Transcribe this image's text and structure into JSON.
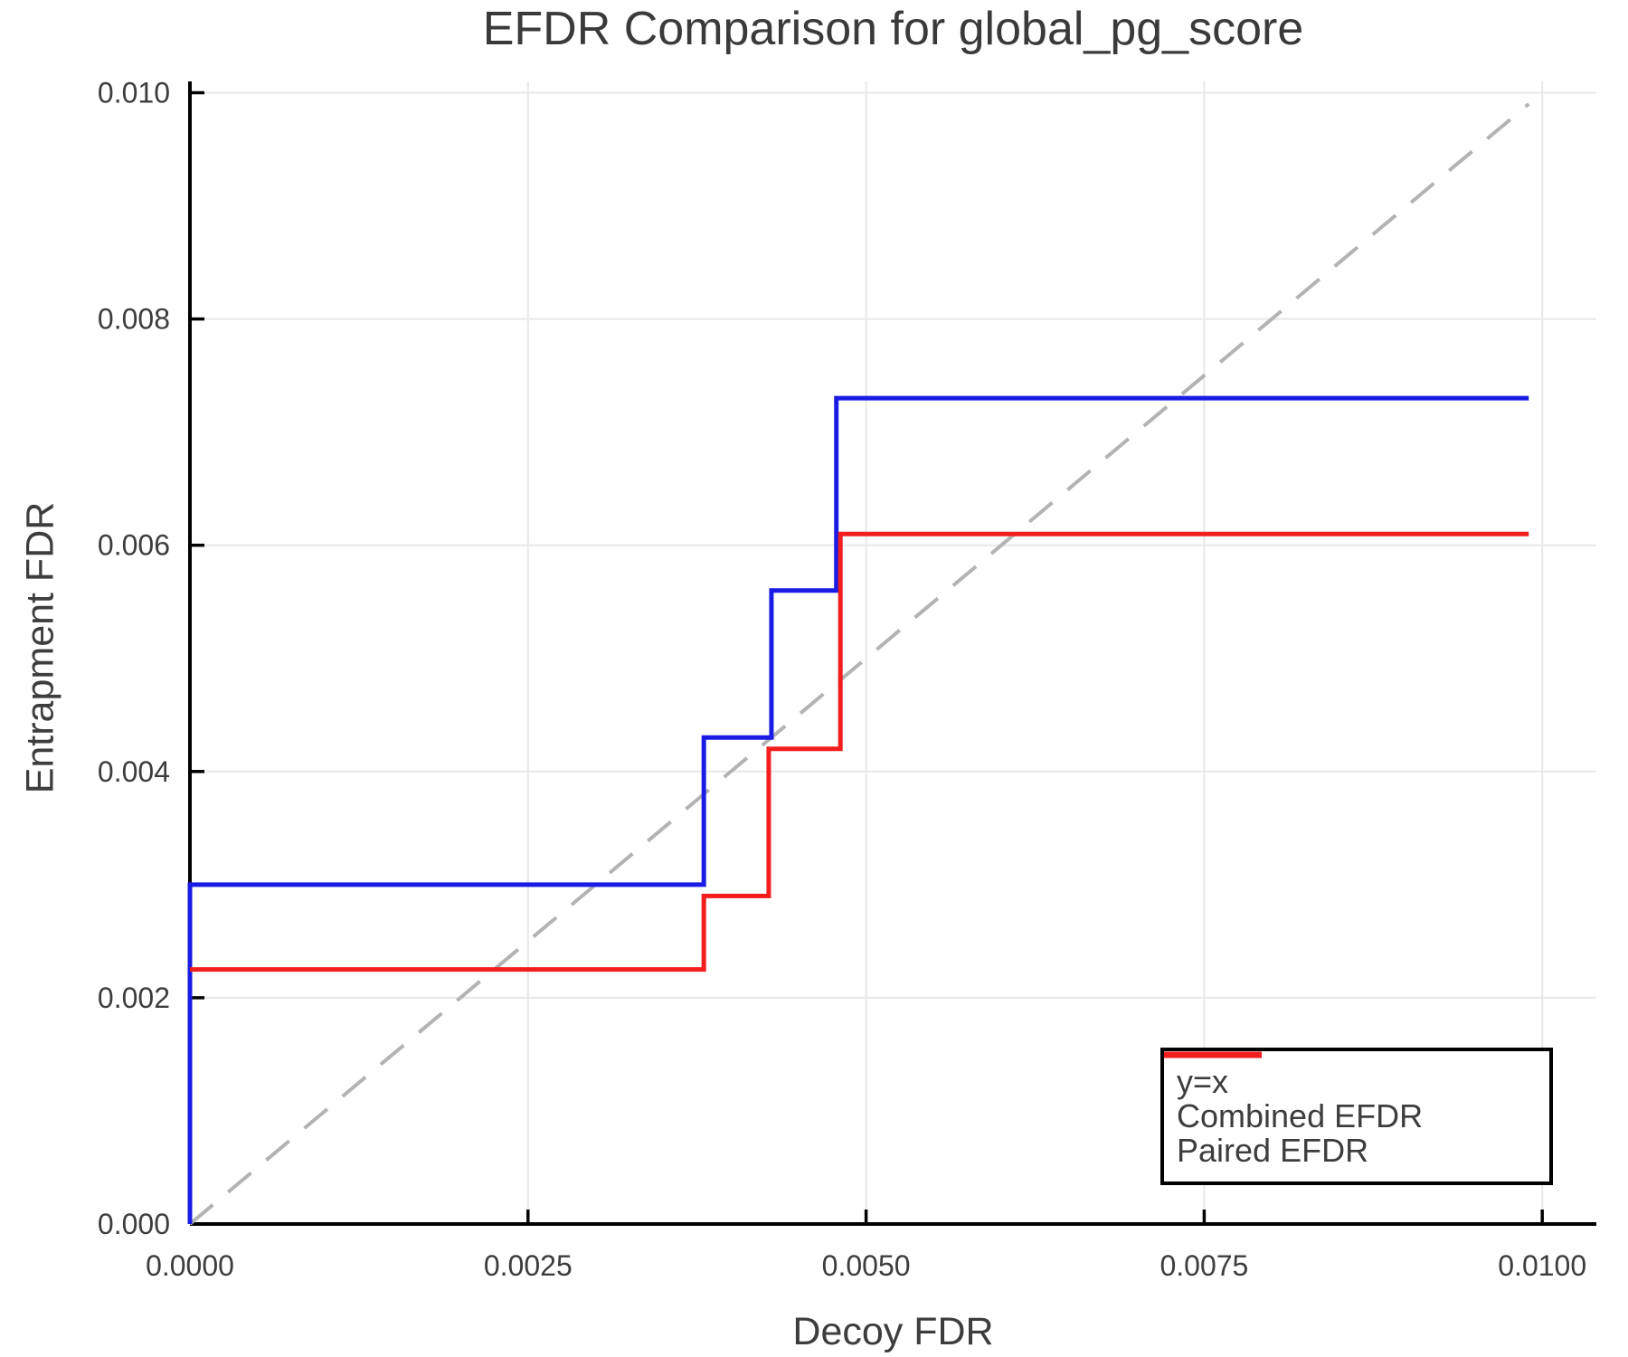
{
  "page": {
    "background": "#ffffff"
  },
  "chart_data": {
    "type": "line",
    "title": "EFDR Comparison for global_pg_score",
    "xlabel": "Decoy FDR",
    "ylabel": "Entrapment FDR",
    "xlim": [
      0,
      0.0104
    ],
    "ylim": [
      0,
      0.0101
    ],
    "x_ticks": {
      "values": [
        0,
        0.0025,
        0.005,
        0.0075,
        0.01
      ],
      "labels": [
        "0.0000",
        "0.0025",
        "0.0050",
        "0.0075",
        "0.0100"
      ]
    },
    "y_ticks": {
      "values": [
        0,
        0.002,
        0.004,
        0.006,
        0.008,
        0.01
      ],
      "labels": [
        "0.000",
        "0.002",
        "0.004",
        "0.006",
        "0.008",
        "0.010"
      ]
    },
    "grid": true,
    "legend": {
      "position": "bottom-right"
    },
    "colors": {
      "grid": "#e8e8e8",
      "spine": "#000000",
      "tick": "#000000",
      "text": "#3d3d3d",
      "identity_line": "#b3b3b3",
      "combined": "#1b1be6",
      "paired": "#f21d1d"
    },
    "series": [
      {
        "name": "y=x",
        "style": "dashed",
        "color": "#b3b3b3",
        "points": [
          [
            0,
            0
          ],
          [
            0.0099,
            0.0099
          ]
        ]
      },
      {
        "name": "Combined EFDR",
        "style": "solid",
        "color": "#1b1be6",
        "points": [
          [
            0,
            0
          ],
          [
            0,
            0.003
          ],
          [
            0.0038,
            0.003
          ],
          [
            0.0038,
            0.0043
          ],
          [
            0.0043,
            0.0043
          ],
          [
            0.0043,
            0.0056
          ],
          [
            0.00478,
            0.0056
          ],
          [
            0.00478,
            0.0073
          ],
          [
            0.0099,
            0.0073
          ]
        ]
      },
      {
        "name": "Paired EFDR",
        "style": "solid",
        "color": "#f21d1d",
        "points": [
          [
            0,
            0.00225
          ],
          [
            0.0038,
            0.00225
          ],
          [
            0.0038,
            0.0029
          ],
          [
            0.00428,
            0.0029
          ],
          [
            0.00428,
            0.0042
          ],
          [
            0.00481,
            0.0042
          ],
          [
            0.00481,
            0.0061
          ],
          [
            0.0099,
            0.0061
          ]
        ]
      }
    ]
  }
}
